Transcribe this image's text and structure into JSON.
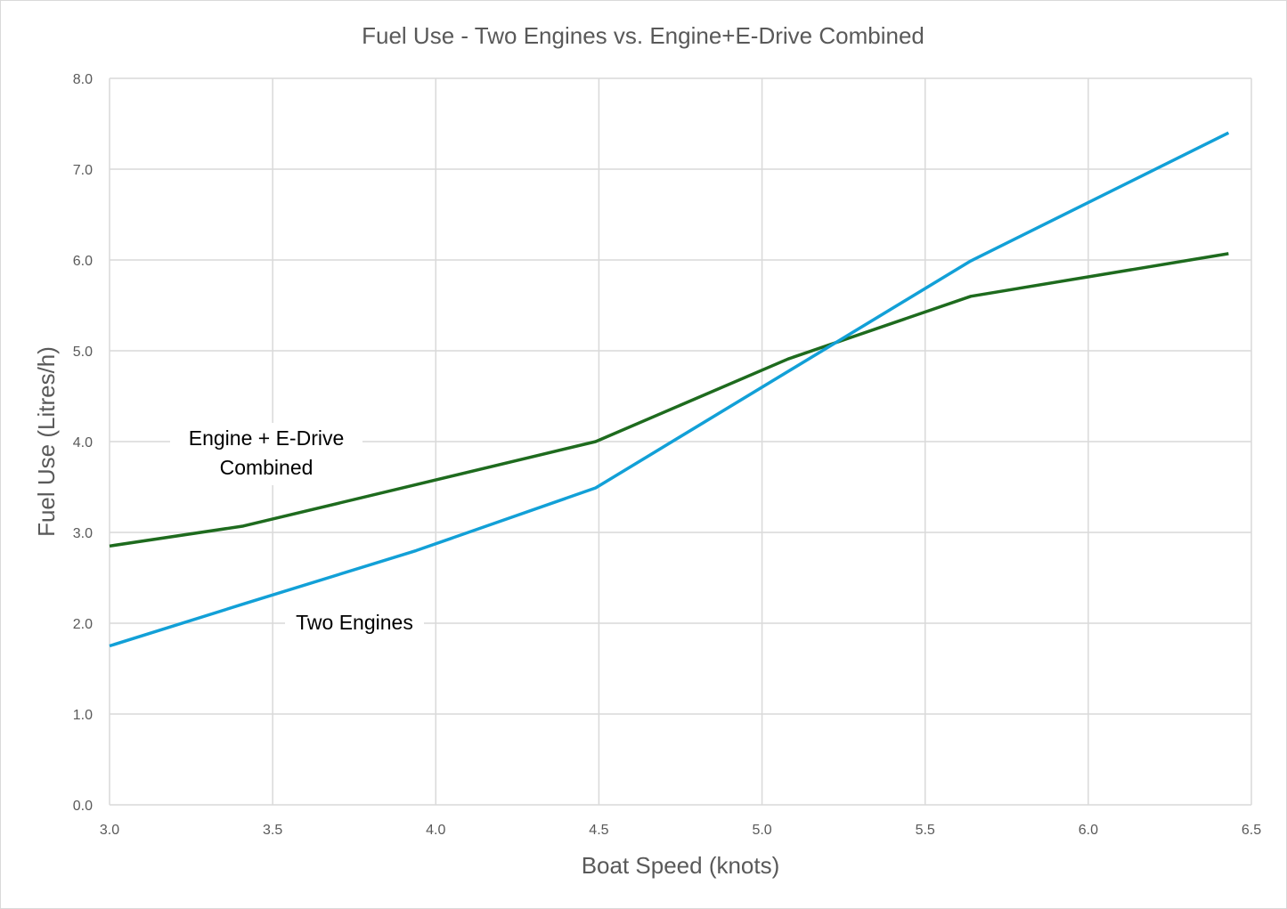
{
  "chart_data": {
    "type": "line",
    "title": "Fuel Use - Two Engines vs. Engine+E-Drive Combined",
    "xlabel": "Boat Speed (knots)",
    "ylabel": "Fuel Use (Litres/h)",
    "xlim": [
      3.0,
      6.5
    ],
    "ylim": [
      0.0,
      8.0
    ],
    "x_ticks": [
      "3.0",
      "3.5",
      "4.0",
      "4.5",
      "5.0",
      "5.5",
      "6.0",
      "6.5"
    ],
    "y_ticks": [
      "0.0",
      "1.0",
      "2.0",
      "3.0",
      "4.0",
      "5.0",
      "6.0",
      "7.0",
      "8.0"
    ],
    "grid": true,
    "legend": "none",
    "series": [
      {
        "name": "Engine + E-Drive Combined",
        "color": "#1e6b1e",
        "x": [
          3.0,
          3.41,
          4.49,
          5.08,
          5.64,
          6.43
        ],
        "y": [
          2.85,
          3.07,
          4.0,
          4.91,
          5.6,
          6.07
        ]
      },
      {
        "name": "Two Engines",
        "color": "#12a0d7",
        "x": [
          3.0,
          3.4,
          3.94,
          4.49,
          5.64,
          6.43
        ],
        "y": [
          1.75,
          2.2,
          2.8,
          3.49,
          5.99,
          7.4
        ]
      }
    ],
    "annotations": [
      {
        "lines": [
          "Engine + E-Drive",
          "Combined"
        ],
        "series": 0
      },
      {
        "lines": [
          "Two Engines"
        ],
        "series": 1
      }
    ]
  }
}
